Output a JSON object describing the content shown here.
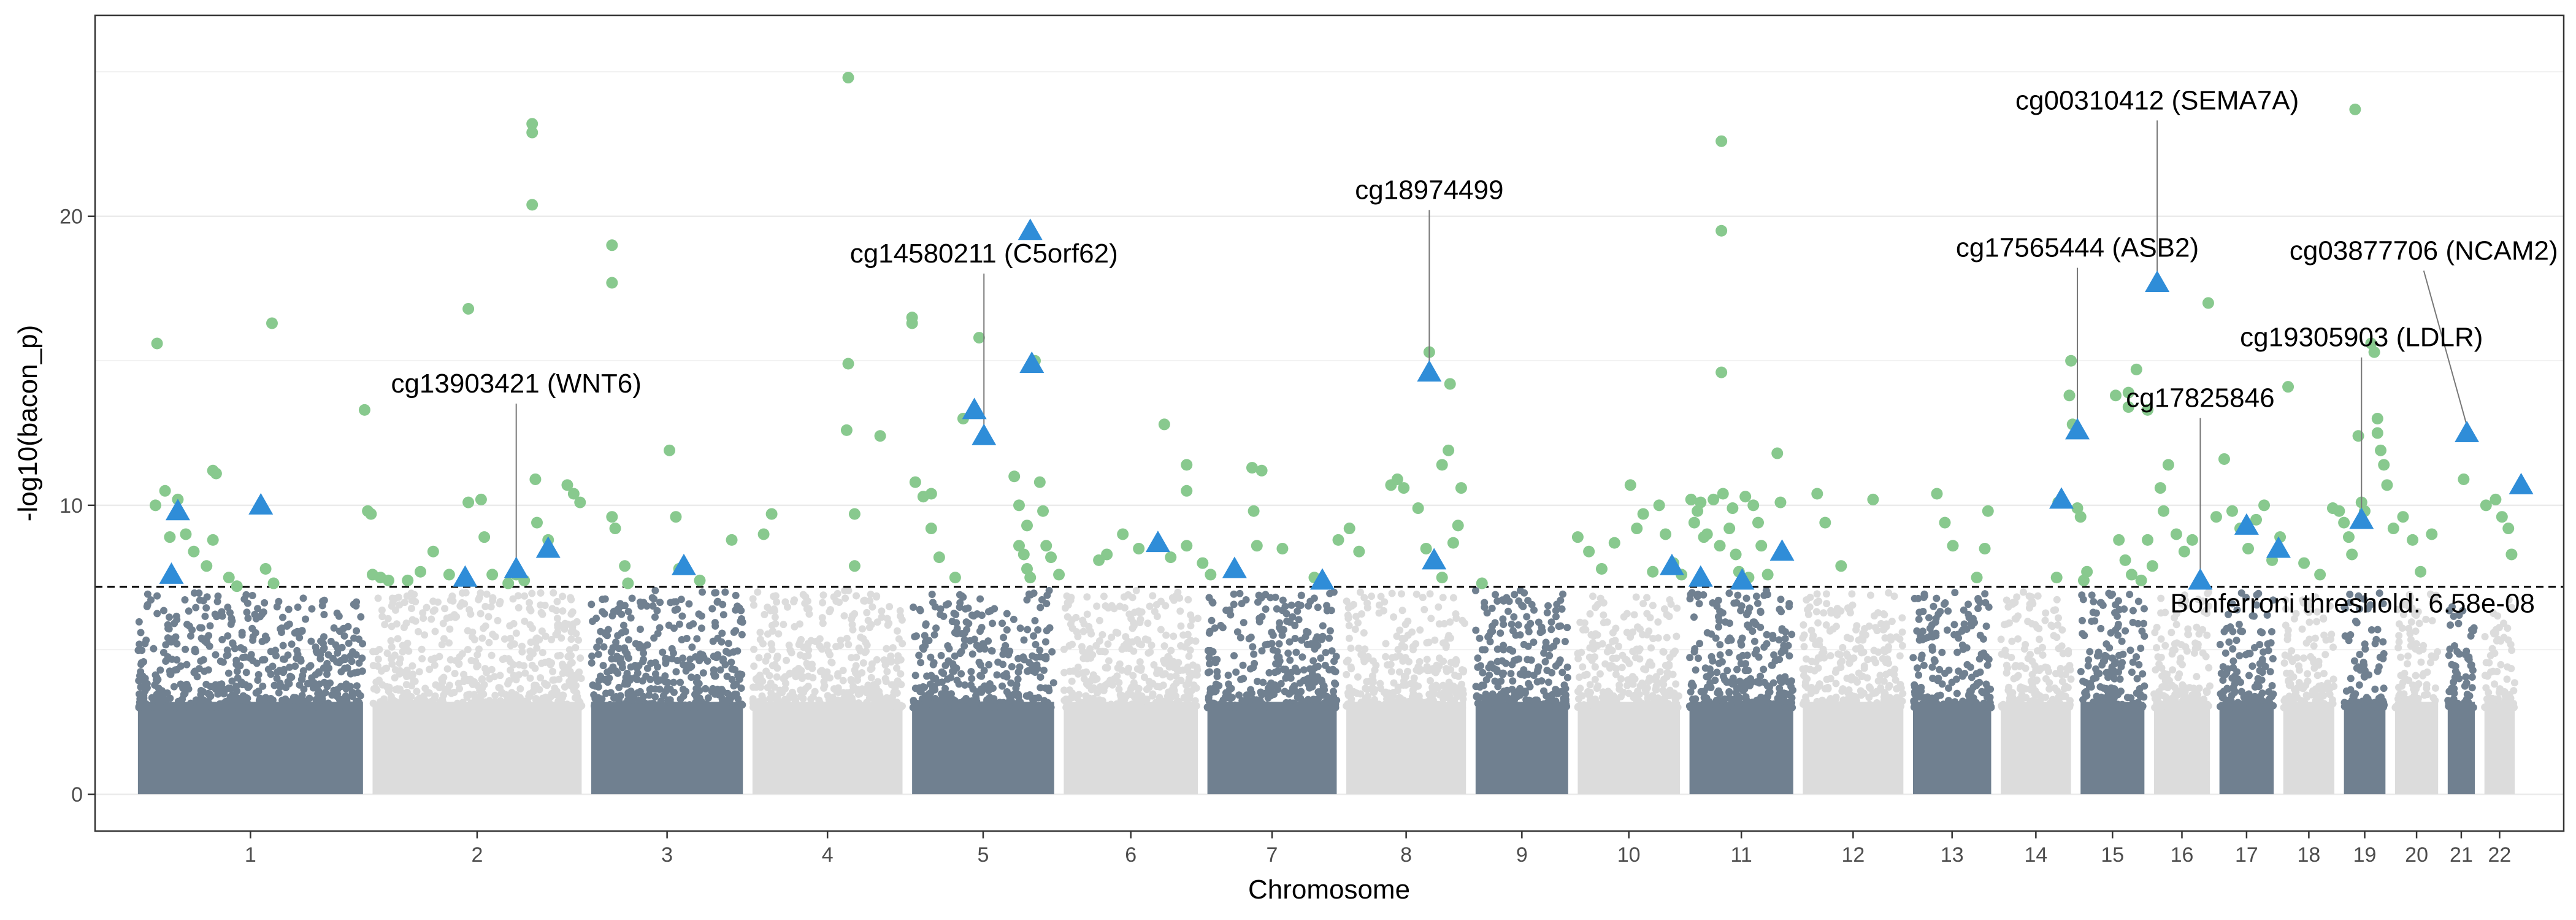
{
  "chart_data": {
    "type": "scatter",
    "subtype": "manhattan",
    "title": "",
    "xlabel": "Chromosome",
    "ylabel": "-log10(bacon_p)",
    "ylim": [
      0,
      26.5
    ],
    "yticks": [
      0,
      10,
      20
    ],
    "grid": "horizontal only",
    "colors": {
      "odd_chromosome": "#708090",
      "even_chromosome": "#dcdcdc",
      "significant": "#88c98e",
      "highlight": "#2f8dd8",
      "threshold_line": "#000000"
    },
    "chromosomes": [
      {
        "label": "1",
        "start": 0,
        "end": 1.47
      },
      {
        "label": "2",
        "start": 1.47,
        "end": 2.84
      },
      {
        "label": "3",
        "start": 2.84,
        "end": 3.85
      },
      {
        "label": "4",
        "start": 3.85,
        "end": 4.85
      },
      {
        "label": "5",
        "start": 4.85,
        "end": 5.8
      },
      {
        "label": "6",
        "start": 5.8,
        "end": 6.7
      },
      {
        "label": "7",
        "start": 6.7,
        "end": 7.57
      },
      {
        "label": "8",
        "start": 7.57,
        "end": 8.38
      },
      {
        "label": "9",
        "start": 8.38,
        "end": 9.02
      },
      {
        "label": "10",
        "start": 9.02,
        "end": 9.72
      },
      {
        "label": "11",
        "start": 9.72,
        "end": 10.43
      },
      {
        "label": "12",
        "start": 10.43,
        "end": 11.12
      },
      {
        "label": "13",
        "start": 11.12,
        "end": 11.67
      },
      {
        "label": "14",
        "start": 11.67,
        "end": 12.17
      },
      {
        "label": "15",
        "start": 12.17,
        "end": 12.63
      },
      {
        "label": "16",
        "start": 12.63,
        "end": 13.04
      },
      {
        "label": "17",
        "start": 13.04,
        "end": 13.44
      },
      {
        "label": "18",
        "start": 13.44,
        "end": 13.82
      },
      {
        "label": "19",
        "start": 13.82,
        "end": 14.14
      },
      {
        "label": "20",
        "start": 14.14,
        "end": 14.47
      },
      {
        "label": "21",
        "start": 14.47,
        "end": 14.7
      },
      {
        "label": "22",
        "start": 14.7,
        "end": 14.95
      }
    ],
    "threshold": {
      "value": 7.18,
      "label": "Bonferroni threshold: 6.58e-08"
    },
    "significant_points": [
      [
        0.15,
        15.6
      ],
      [
        0.14,
        10.0
      ],
      [
        0.2,
        10.5
      ],
      [
        0.23,
        8.9
      ],
      [
        0.28,
        10.2
      ],
      [
        0.33,
        9.0
      ],
      [
        0.38,
        8.4
      ],
      [
        0.5,
        11.2
      ],
      [
        0.52,
        11.1
      ],
      [
        0.6,
        7.5
      ],
      [
        0.65,
        7.2
      ],
      [
        0.46,
        7.9
      ],
      [
        0.5,
        8.8
      ],
      [
        0.87,
        16.3
      ],
      [
        0.83,
        7.8
      ],
      [
        0.88,
        7.3
      ],
      [
        1.45,
        13.3
      ],
      [
        1.47,
        9.8
      ],
      [
        1.49,
        9.7
      ],
      [
        1.5,
        7.6
      ],
      [
        1.55,
        7.5
      ],
      [
        1.6,
        7.4
      ],
      [
        1.72,
        7.4
      ],
      [
        1.8,
        7.7
      ],
      [
        1.88,
        8.4
      ],
      [
        1.98,
        7.6
      ],
      [
        2.1,
        16.8
      ],
      [
        2.1,
        10.1
      ],
      [
        2.18,
        10.2
      ],
      [
        2.2,
        8.9
      ],
      [
        2.25,
        7.6
      ],
      [
        2.35,
        7.3
      ],
      [
        2.4,
        7.6
      ],
      [
        2.45,
        7.4
      ],
      [
        2.5,
        23.2
      ],
      [
        2.5,
        22.9
      ],
      [
        2.5,
        20.4
      ],
      [
        2.52,
        10.9
      ],
      [
        2.53,
        9.4
      ],
      [
        2.6,
        8.8
      ],
      [
        2.72,
        10.7
      ],
      [
        2.76,
        10.4
      ],
      [
        2.8,
        10.1
      ],
      [
        3.0,
        19.0
      ],
      [
        3.0,
        17.7
      ],
      [
        3.0,
        9.6
      ],
      [
        3.02,
        9.2
      ],
      [
        3.08,
        7.9
      ],
      [
        3.1,
        7.3
      ],
      [
        3.36,
        11.9
      ],
      [
        3.4,
        9.6
      ],
      [
        3.42,
        7.8
      ],
      [
        3.55,
        7.4
      ],
      [
        3.75,
        8.8
      ],
      [
        3.95,
        9.0
      ],
      [
        4.0,
        9.7
      ],
      [
        4.48,
        24.8
      ],
      [
        4.48,
        14.9
      ],
      [
        4.47,
        12.6
      ],
      [
        4.52,
        9.7
      ],
      [
        4.52,
        7.9
      ],
      [
        4.68,
        12.4
      ],
      [
        4.88,
        16.5
      ],
      [
        4.88,
        16.3
      ],
      [
        4.9,
        10.8
      ],
      [
        4.95,
        10.3
      ],
      [
        5.0,
        10.4
      ],
      [
        5.0,
        9.2
      ],
      [
        5.05,
        8.2
      ],
      [
        5.2,
        13.0
      ],
      [
        5.3,
        15.8
      ],
      [
        5.15,
        7.5
      ],
      [
        5.52,
        11.0
      ],
      [
        5.55,
        10.0
      ],
      [
        5.6,
        9.3
      ],
      [
        5.55,
        8.6
      ],
      [
        5.58,
        8.3
      ],
      [
        5.6,
        7.8
      ],
      [
        5.62,
        7.5
      ],
      [
        5.65,
        15.0
      ],
      [
        5.68,
        10.8
      ],
      [
        5.7,
        9.8
      ],
      [
        5.72,
        8.6
      ],
      [
        5.75,
        8.2
      ],
      [
        5.8,
        7.6
      ],
      [
        6.05,
        8.1
      ],
      [
        6.1,
        8.3
      ],
      [
        6.2,
        9.0
      ],
      [
        6.3,
        8.5
      ],
      [
        6.46,
        12.8
      ],
      [
        6.5,
        8.2
      ],
      [
        6.6,
        11.4
      ],
      [
        6.6,
        10.5
      ],
      [
        6.6,
        8.6
      ],
      [
        6.7,
        8.0
      ],
      [
        6.75,
        7.6
      ],
      [
        7.01,
        11.3
      ],
      [
        7.07,
        11.2
      ],
      [
        7.02,
        9.8
      ],
      [
        7.04,
        8.6
      ],
      [
        7.2,
        8.5
      ],
      [
        7.4,
        7.5
      ],
      [
        7.55,
        8.8
      ],
      [
        7.62,
        9.2
      ],
      [
        7.68,
        8.4
      ],
      [
        7.88,
        10.7
      ],
      [
        7.92,
        10.9
      ],
      [
        7.96,
        10.6
      ],
      [
        8.05,
        9.9
      ],
      [
        8.12,
        15.3
      ],
      [
        8.25,
        14.2
      ],
      [
        8.24,
        11.9
      ],
      [
        8.2,
        11.4
      ],
      [
        8.32,
        10.6
      ],
      [
        8.3,
        9.3
      ],
      [
        8.27,
        8.7
      ],
      [
        8.1,
        8.5
      ],
      [
        8.2,
        7.5
      ],
      [
        8.45,
        7.3
      ],
      [
        9.05,
        8.9
      ],
      [
        9.12,
        8.4
      ],
      [
        9.2,
        7.8
      ],
      [
        9.28,
        8.7
      ],
      [
        9.38,
        10.7
      ],
      [
        9.42,
        9.2
      ],
      [
        9.46,
        9.7
      ],
      [
        9.52,
        7.7
      ],
      [
        9.56,
        10.0
      ],
      [
        9.6,
        9.0
      ],
      [
        9.65,
        8.0
      ],
      [
        9.7,
        7.6
      ],
      [
        9.76,
        10.2
      ],
      [
        9.78,
        9.4
      ],
      [
        9.8,
        9.8
      ],
      [
        9.82,
        10.1
      ],
      [
        9.84,
        8.9
      ],
      [
        9.86,
        9.0
      ],
      [
        9.9,
        10.2
      ],
      [
        9.95,
        22.6
      ],
      [
        9.95,
        19.5
      ],
      [
        9.95,
        14.6
      ],
      [
        9.94,
        8.6
      ],
      [
        9.96,
        10.4
      ],
      [
        10.0,
        9.2
      ],
      [
        10.02,
        9.9
      ],
      [
        10.04,
        8.3
      ],
      [
        10.06,
        7.7
      ],
      [
        10.1,
        10.3
      ],
      [
        10.15,
        10.0
      ],
      [
        10.18,
        9.4
      ],
      [
        10.2,
        8.6
      ],
      [
        10.24,
        7.6
      ],
      [
        10.3,
        11.8
      ],
      [
        10.32,
        10.1
      ],
      [
        10.12,
        7.5
      ],
      [
        10.55,
        10.4
      ],
      [
        10.6,
        9.4
      ],
      [
        10.7,
        7.9
      ],
      [
        10.9,
        10.2
      ],
      [
        11.3,
        10.4
      ],
      [
        11.35,
        9.4
      ],
      [
        11.4,
        8.6
      ],
      [
        11.6,
        8.5
      ],
      [
        11.62,
        9.8
      ],
      [
        11.55,
        7.5
      ],
      [
        12.14,
        15.0
      ],
      [
        12.13,
        13.8
      ],
      [
        12.15,
        12.8
      ],
      [
        12.06,
        10.1
      ],
      [
        12.18,
        9.9
      ],
      [
        12.2,
        9.6
      ],
      [
        12.05,
        7.5
      ],
      [
        12.22,
        7.4
      ],
      [
        12.24,
        7.7
      ],
      [
        12.42,
        13.8
      ],
      [
        12.5,
        13.4
      ],
      [
        12.55,
        14.7
      ],
      [
        12.5,
        13.9
      ],
      [
        12.62,
        13.3
      ],
      [
        12.44,
        8.8
      ],
      [
        12.48,
        8.1
      ],
      [
        12.52,
        7.6
      ],
      [
        12.58,
        7.4
      ],
      [
        12.62,
        8.8
      ],
      [
        12.65,
        7.9
      ],
      [
        12.7,
        10.6
      ],
      [
        12.72,
        9.8
      ],
      [
        12.75,
        11.4
      ],
      [
        12.8,
        9.0
      ],
      [
        12.85,
        8.4
      ],
      [
        12.9,
        8.8
      ],
      [
        12.95,
        7.4
      ],
      [
        13.0,
        17.0
      ],
      [
        13.1,
        11.6
      ],
      [
        13.05,
        9.6
      ],
      [
        13.15,
        9.8
      ],
      [
        13.2,
        9.2
      ],
      [
        13.25,
        8.5
      ],
      [
        13.3,
        9.5
      ],
      [
        13.35,
        10.0
      ],
      [
        13.4,
        8.1
      ],
      [
        13.5,
        14.1
      ],
      [
        13.45,
        8.9
      ],
      [
        13.6,
        8.0
      ],
      [
        13.7,
        7.6
      ],
      [
        13.78,
        9.9
      ],
      [
        13.82,
        9.8
      ],
      [
        13.85,
        9.4
      ],
      [
        13.88,
        8.9
      ],
      [
        13.9,
        8.3
      ],
      [
        13.92,
        23.7
      ],
      [
        13.94,
        12.4
      ],
      [
        13.96,
        10.1
      ],
      [
        13.98,
        9.8
      ],
      [
        14.02,
        15.6
      ],
      [
        14.04,
        15.3
      ],
      [
        14.06,
        13.0
      ],
      [
        14.06,
        12.5
      ],
      [
        14.08,
        11.9
      ],
      [
        14.1,
        11.4
      ],
      [
        14.12,
        10.7
      ],
      [
        14.16,
        9.2
      ],
      [
        14.22,
        9.6
      ],
      [
        14.28,
        8.8
      ],
      [
        14.33,
        7.7
      ],
      [
        14.4,
        9.0
      ],
      [
        14.6,
        10.9
      ],
      [
        14.74,
        10.0
      ],
      [
        14.8,
        10.2
      ],
      [
        14.84,
        9.6
      ],
      [
        14.88,
        9.2
      ],
      [
        14.9,
        8.3
      ]
    ],
    "highlight_points": [
      [
        0.28,
        9.8
      ],
      [
        0.24,
        7.6
      ],
      [
        0.8,
        10.0
      ],
      [
        2.08,
        7.5
      ],
      [
        2.4,
        7.8
      ],
      [
        2.6,
        8.5
      ],
      [
        3.45,
        7.9
      ],
      [
        5.27,
        13.3
      ],
      [
        5.33,
        12.4
      ],
      [
        5.62,
        19.5
      ],
      [
        5.63,
        14.9
      ],
      [
        6.42,
        8.7
      ],
      [
        6.9,
        7.8
      ],
      [
        7.45,
        7.4
      ],
      [
        8.12,
        14.6
      ],
      [
        8.15,
        8.1
      ],
      [
        9.64,
        7.9
      ],
      [
        9.82,
        7.5
      ],
      [
        10.08,
        7.4
      ],
      [
        10.33,
        8.4
      ],
      [
        12.08,
        10.2
      ],
      [
        12.18,
        12.6
      ],
      [
        12.68,
        17.7
      ],
      [
        12.95,
        7.4
      ],
      [
        13.24,
        9.3
      ],
      [
        13.44,
        8.5
      ],
      [
        13.96,
        9.5
      ],
      [
        14.62,
        12.5
      ],
      [
        14.96,
        10.7
      ]
    ],
    "annotations": [
      {
        "label": "cg13903421 (WNT6)",
        "x": 2.4,
        "y": 7.8,
        "text_x": 2.4,
        "text_y": 13.9
      },
      {
        "label": "cg14580211 (C5orf62)",
        "x": 5.33,
        "y": 12.4,
        "text_x": 5.33,
        "text_y": 18.4
      },
      {
        "label": "cg18974499",
        "x": 8.12,
        "y": 14.6,
        "text_x": 8.12,
        "text_y": 20.6
      },
      {
        "label": "cg00310412 (SEMA7A)",
        "x": 12.68,
        "y": 17.7,
        "text_x": 12.68,
        "text_y": 23.7
      },
      {
        "label": "cg17565444 (ASB2)",
        "x": 12.18,
        "y": 12.6,
        "text_x": 12.18,
        "text_y": 18.6
      },
      {
        "label": "cg03877706 (NCAM2)",
        "x": 14.62,
        "y": 12.5,
        "text_x": 14.35,
        "text_y": 18.5
      },
      {
        "label": "cg19305903 (LDLR)",
        "x": 13.96,
        "y": 9.5,
        "text_x": 13.96,
        "text_y": 15.5
      },
      {
        "label": "cg17825846",
        "x": 12.95,
        "y": 7.4,
        "text_x": 12.95,
        "text_y": 13.4
      }
    ],
    "background_density": {
      "points_per_unit": 420,
      "y_max": 7.0,
      "notes": "dense non-significant probes below threshold"
    }
  }
}
